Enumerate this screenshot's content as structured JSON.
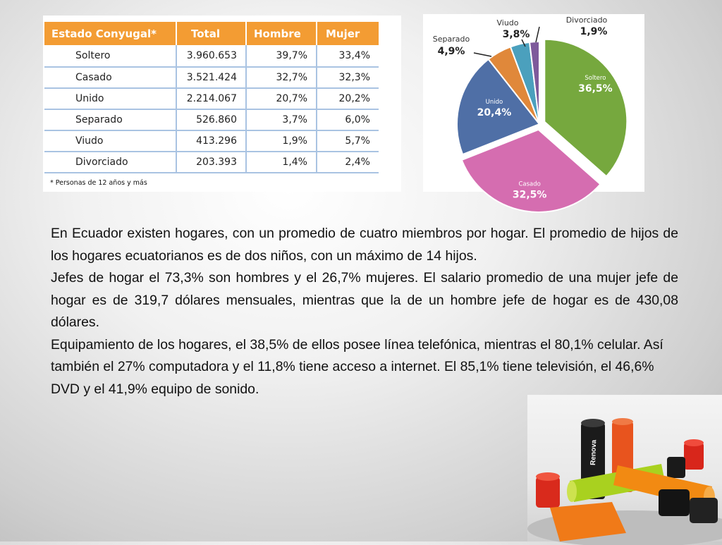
{
  "table": {
    "headers": [
      "Estado Conyugal*",
      "Total",
      "Hombre",
      "Mujer"
    ],
    "rows": [
      [
        "Soltero",
        "3.960.653",
        "39,7%",
        "33,4%"
      ],
      [
        "Casado",
        "3.521.424",
        "32,7%",
        "32,3%"
      ],
      [
        "Unido",
        "2.214.067",
        "20,7%",
        "20,2%"
      ],
      [
        "Separado",
        "526.860",
        "3,7%",
        "6,0%"
      ],
      [
        "Viudo",
        "413.296",
        "1,9%",
        "5,7%"
      ],
      [
        "Divorciado",
        "203.393",
        "1,4%",
        "2,4%"
      ]
    ],
    "note": "* Personas de 12 años y más",
    "header_color": "#f39c33",
    "line_color": "#a9c3e2"
  },
  "chart_data": {
    "type": "pie",
    "slices": [
      {
        "label": "Soltero",
        "value": 36.5,
        "display": "36,5%",
        "color": "#76a83e"
      },
      {
        "label": "Casado",
        "value": 32.5,
        "display": "32,5%",
        "color": "#d56db0"
      },
      {
        "label": "Unido",
        "value": 20.4,
        "display": "20,4%",
        "color": "#4f6fa6"
      },
      {
        "label": "Separado",
        "value": 4.9,
        "display": "4,9%",
        "color": "#e0883a"
      },
      {
        "label": "Viudo",
        "value": 3.8,
        "display": "3,8%",
        "color": "#4ba0bd"
      },
      {
        "label": "Divorciado",
        "value": 1.9,
        "display": "1,9%",
        "color": "#7e5a9b"
      }
    ]
  },
  "body": {
    "p1": "En Ecuador existen hogares, con un promedio de cuatro miembros por hogar. El promedio de hijos de los hogares ecuatorianos es de dos niños, con un máximo de 14 hijos.",
    "p2": "Jefes de hogar el 73,3% son hombres y el 26,7% mujeres. El salario promedio de una mujer jefe de hogar es de 319,7 dólares mensuales, mientras que la de un hombre jefe de hogar es de 430,08 dólares.",
    "p3": "Equipamiento de los hogares, el 38,5% de ellos posee línea telefónica, mientras el 80,1% celular. Así también el 27% computadora y el 11,8% tiene acceso a internet. El 85,1% tiene televisión, el 46,6% DVD y el 41,9% equipo de sonido."
  },
  "photo": {
    "brand_text": "Renova"
  }
}
